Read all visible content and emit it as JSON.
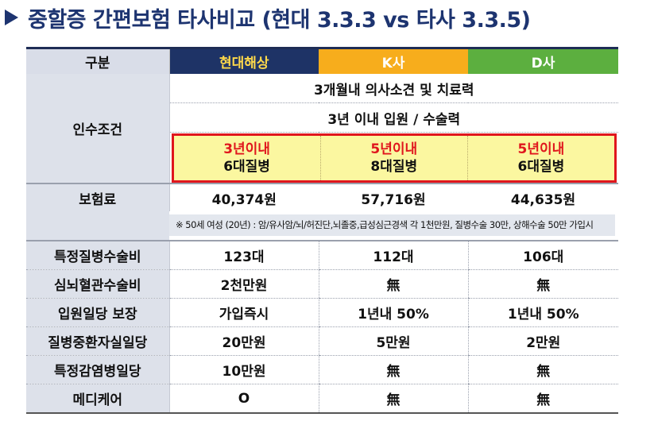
{
  "title": "중할증 간편보험 타사비교 (현대 3.3.3 vs 타사 3.3.5)",
  "header": {
    "label": "구분",
    "companies": [
      "현대해상",
      "K사",
      "D사"
    ]
  },
  "underwriting": {
    "label": "인수조건",
    "line1": "3개월내 의사소견 및 치료력",
    "line2": "3년 이내 입원 / 수술력",
    "conditions": [
      {
        "period": "3년이내",
        "disease": "6대질병"
      },
      {
        "period": "5년이내",
        "disease": "8대질병"
      },
      {
        "period": "5년이내",
        "disease": "6대질병"
      }
    ]
  },
  "premium": {
    "label": "보험료",
    "values": [
      "40,374원",
      "57,716원",
      "44,635원"
    ],
    "note": "※ 50세 여성 (20년) : 암/유사암/뇌/허진단,뇌졸중,급성심근경색 각 1천만원, 질병수술 30만, 상해수술 50만 가입시"
  },
  "rows": [
    {
      "label": "특정질병수술비",
      "values": [
        "123대",
        "112대",
        "106대"
      ]
    },
    {
      "label": "심뇌혈관수술비",
      "values": [
        "2천만원",
        "無",
        "無"
      ]
    },
    {
      "label": "입원일당 보장",
      "values": [
        "가입즉시",
        "1년내 50%",
        "1년내 50%"
      ]
    },
    {
      "label": "질병중환자실일당",
      "values": [
        "20만원",
        "5만원",
        "2만원"
      ]
    },
    {
      "label": "특정감염병일당",
      "values": [
        "10만원",
        "無",
        "無"
      ]
    },
    {
      "label": "메디케어",
      "values": [
        "O",
        "無",
        "無"
      ]
    }
  ],
  "colors": {
    "title": "#1d3470",
    "hyundai_header": "#1e3366",
    "hyundai_text": "#ffd94a",
    "k_header": "#f7ad1c",
    "d_header": "#5caf3f",
    "highlight_border": "#e0161d",
    "highlight_fill": "#fbf7a0"
  }
}
